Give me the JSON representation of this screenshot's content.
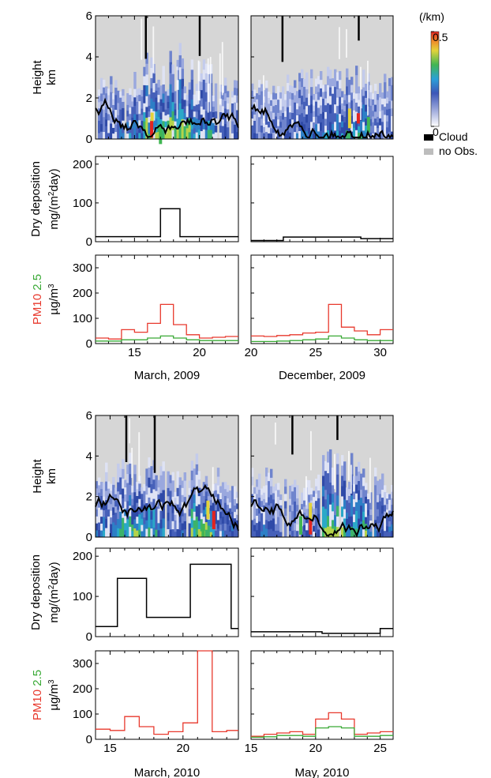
{
  "legend": {
    "unit": "(/km)",
    "colorbar_max": "0.5",
    "colorbar_min": "0",
    "cloud_label": "Cloud",
    "noobs_label": "no Obs.",
    "cloud_color": "#000000",
    "noobs_color": "#bdbdbd"
  },
  "labels": {
    "height": "Height",
    "height_unit": "km",
    "dep": "Dry deposition",
    "dep_unit": "mg/(m",
    "dep_unit_sup": "2",
    "dep_unit_end": "day)",
    "pm_a": "PM10",
    "pm_b": "2.5",
    "pm_unit": "µg/m",
    "pm_unit_sup": "3"
  },
  "colors": {
    "pm10": "#e8392d",
    "pm25": "#39a935",
    "dep": "#000000"
  },
  "chart_data": [
    {
      "type": "line",
      "period": "March, 2009",
      "xlim": [
        12,
        23
      ],
      "xticks": [
        15,
        20
      ],
      "lidar": {
        "ylim": [
          0,
          6
        ],
        "yticks": [
          0,
          2,
          4,
          6
        ],
        "colorscale": [
          0,
          0.5
        ]
      },
      "deposition": {
        "ylim": [
          0,
          220
        ],
        "yticks": [
          0,
          100,
          200
        ],
        "steps": [
          [
            12,
            13
          ],
          [
            17,
            85
          ],
          [
            18.5,
            13
          ],
          [
            23,
            13
          ]
        ]
      },
      "pm": {
        "ylim": [
          0,
          350
        ],
        "yticks": [
          0,
          100,
          200,
          300
        ],
        "series": [
          {
            "name": "PM10",
            "steps": [
              [
                12,
                22
              ],
              [
                13,
                18
              ],
              [
                14,
                55
              ],
              [
                15,
                45
              ],
              [
                16,
                80
              ],
              [
                17,
                155
              ],
              [
                18,
                75
              ],
              [
                19,
                35
              ],
              [
                20,
                22
              ],
              [
                21,
                25
              ],
              [
                22,
                28
              ],
              [
                23,
                28
              ]
            ]
          },
          {
            "name": "2.5",
            "steps": [
              [
                12,
                10
              ],
              [
                13,
                10
              ],
              [
                14,
                15
              ],
              [
                15,
                15
              ],
              [
                16,
                22
              ],
              [
                17,
                30
              ],
              [
                18,
                22
              ],
              [
                19,
                15
              ],
              [
                20,
                12
              ],
              [
                21,
                12
              ],
              [
                22,
                12
              ],
              [
                23,
                12
              ]
            ]
          }
        ]
      }
    },
    {
      "type": "line",
      "period": "December, 2009",
      "xlim": [
        20,
        31
      ],
      "xticks": [
        20,
        25,
        30
      ],
      "lidar": {
        "ylim": [
          0,
          6
        ],
        "yticks": [
          0,
          2,
          4,
          6
        ],
        "colorscale": [
          0,
          0.5
        ]
      },
      "deposition": {
        "ylim": [
          0,
          220
        ],
        "yticks": [
          0,
          100,
          200
        ],
        "steps": [
          [
            20,
            3
          ],
          [
            22.5,
            12
          ],
          [
            28.5,
            8
          ],
          [
            31,
            8
          ]
        ]
      },
      "pm": {
        "ylim": [
          0,
          350
        ],
        "yticks": [
          0,
          100,
          200,
          300
        ],
        "series": [
          {
            "name": "PM10",
            "steps": [
              [
                20,
                30
              ],
              [
                21,
                28
              ],
              [
                22,
                32
              ],
              [
                23,
                35
              ],
              [
                24,
                42
              ],
              [
                25,
                45
              ],
              [
                26,
                155
              ],
              [
                27,
                65
              ],
              [
                28,
                50
              ],
              [
                29,
                35
              ],
              [
                30,
                55
              ],
              [
                31,
                55
              ]
            ]
          },
          {
            "name": "2.5",
            "steps": [
              [
                20,
                8
              ],
              [
                21,
                8
              ],
              [
                22,
                10
              ],
              [
                23,
                12
              ],
              [
                24,
                15
              ],
              [
                25,
                18
              ],
              [
                26,
                30
              ],
              [
                27,
                22
              ],
              [
                28,
                15
              ],
              [
                29,
                12
              ],
              [
                30,
                12
              ],
              [
                31,
                12
              ]
            ]
          }
        ]
      }
    },
    {
      "type": "line",
      "period": "March, 2010",
      "xlim": [
        14,
        23.8
      ],
      "xticks": [
        15,
        20
      ],
      "lidar": {
        "ylim": [
          0,
          6
        ],
        "yticks": [
          0,
          2,
          4,
          6
        ],
        "colorscale": [
          0,
          0.5
        ]
      },
      "deposition": {
        "ylim": [
          0,
          220
        ],
        "yticks": [
          0,
          100,
          200
        ],
        "steps": [
          [
            14,
            25
          ],
          [
            15.5,
            145
          ],
          [
            17.5,
            48
          ],
          [
            20.5,
            180
          ],
          [
            23.3,
            20
          ],
          [
            23.8,
            20
          ]
        ]
      },
      "pm": {
        "ylim": [
          0,
          350
        ],
        "yticks": [
          0,
          100,
          200,
          300
        ],
        "series": [
          {
            "name": "PM10",
            "steps": [
              [
                14,
                40
              ],
              [
                15,
                35
              ],
              [
                16,
                90
              ],
              [
                17,
                50
              ],
              [
                18,
                20
              ],
              [
                19,
                30
              ],
              [
                20,
                65
              ],
              [
                21,
                350
              ],
              [
                22,
                30
              ],
              [
                23,
                35
              ],
              [
                23.8,
                35
              ]
            ]
          },
          {
            "name": "2.5",
            "steps": []
          }
        ]
      }
    },
    {
      "type": "line",
      "period": "May, 2010",
      "xlim": [
        15,
        26
      ],
      "xticks": [
        15,
        20,
        25
      ],
      "lidar": {
        "ylim": [
          0,
          6
        ],
        "yticks": [
          0,
          2,
          4,
          6
        ],
        "colorscale": [
          0,
          0.5
        ]
      },
      "deposition": {
        "ylim": [
          0,
          220
        ],
        "yticks": [
          0,
          100,
          200
        ],
        "steps": [
          [
            15,
            12
          ],
          [
            20.5,
            8
          ],
          [
            25,
            20
          ],
          [
            26,
            20
          ]
        ]
      },
      "pm": {
        "ylim": [
          0,
          350
        ],
        "yticks": [
          0,
          100,
          200,
          300
        ],
        "series": [
          {
            "name": "PM10",
            "steps": [
              [
                15,
                12
              ],
              [
                16,
                20
              ],
              [
                17,
                25
              ],
              [
                18,
                30
              ],
              [
                19,
                20
              ],
              [
                20,
                80
              ],
              [
                21,
                105
              ],
              [
                22,
                80
              ],
              [
                23,
                20
              ],
              [
                24,
                25
              ],
              [
                25,
                30
              ],
              [
                26,
                30
              ]
            ]
          },
          {
            "name": "2.5",
            "steps": [
              [
                15,
                8
              ],
              [
                16,
                10
              ],
              [
                17,
                15
              ],
              [
                18,
                15
              ],
              [
                19,
                12
              ],
              [
                20,
                45
              ],
              [
                21,
                50
              ],
              [
                22,
                45
              ],
              [
                23,
                12
              ],
              [
                24,
                12
              ],
              [
                25,
                15
              ],
              [
                26,
                15
              ]
            ]
          }
        ]
      }
    }
  ]
}
